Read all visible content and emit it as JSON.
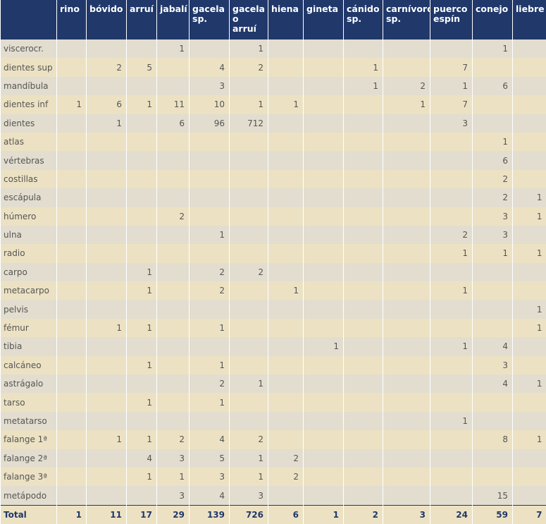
{
  "table": {
    "header": [
      "rino",
      "bóvido",
      "arruí",
      "jabalí",
      "gacela sp.",
      "gacela o arruí",
      "hiena",
      "gineta",
      "cánido sp.",
      "carnívoro sp.",
      "puerco espín",
      "conejo",
      "liebre"
    ],
    "rows": [
      {
        "label": "viscerocr.",
        "cells": [
          null,
          null,
          null,
          1,
          null,
          1,
          null,
          null,
          null,
          null,
          null,
          1,
          null
        ]
      },
      {
        "label": "dientes sup",
        "cells": [
          null,
          2,
          5,
          null,
          4,
          2,
          null,
          null,
          1,
          null,
          7,
          null,
          null
        ]
      },
      {
        "label": "mandíbula",
        "cells": [
          null,
          null,
          null,
          null,
          3,
          null,
          null,
          null,
          1,
          2,
          1,
          6,
          null
        ]
      },
      {
        "label": "dientes inf",
        "cells": [
          1,
          6,
          1,
          11,
          10,
          1,
          1,
          null,
          null,
          1,
          7,
          null,
          null
        ]
      },
      {
        "label": "dientes",
        "cells": [
          null,
          1,
          null,
          6,
          96,
          712,
          null,
          null,
          null,
          null,
          3,
          null,
          null
        ]
      },
      {
        "label": "atlas",
        "cells": [
          null,
          null,
          null,
          null,
          null,
          null,
          null,
          null,
          null,
          null,
          null,
          1,
          null
        ]
      },
      {
        "label": "vértebras",
        "cells": [
          null,
          null,
          null,
          null,
          null,
          null,
          null,
          null,
          null,
          null,
          null,
          6,
          null
        ]
      },
      {
        "label": "costillas",
        "cells": [
          null,
          null,
          null,
          null,
          null,
          null,
          null,
          null,
          null,
          null,
          null,
          2,
          null
        ]
      },
      {
        "label": "escápula",
        "cells": [
          null,
          null,
          null,
          null,
          null,
          null,
          null,
          null,
          null,
          null,
          null,
          2,
          1
        ]
      },
      {
        "label": "húmero",
        "cells": [
          null,
          null,
          null,
          2,
          null,
          null,
          null,
          null,
          null,
          null,
          null,
          3,
          1
        ]
      },
      {
        "label": "ulna",
        "cells": [
          null,
          null,
          null,
          null,
          1,
          null,
          null,
          null,
          null,
          null,
          2,
          3,
          null
        ]
      },
      {
        "label": "radio",
        "cells": [
          null,
          null,
          null,
          null,
          null,
          null,
          null,
          null,
          null,
          null,
          1,
          1,
          1
        ]
      },
      {
        "label": "carpo",
        "cells": [
          null,
          null,
          1,
          null,
          2,
          2,
          null,
          null,
          null,
          null,
          null,
          null,
          null
        ]
      },
      {
        "label": "metacarpo",
        "cells": [
          null,
          null,
          1,
          null,
          2,
          null,
          1,
          null,
          null,
          null,
          1,
          null,
          null
        ]
      },
      {
        "label": "pelvis",
        "cells": [
          null,
          null,
          null,
          null,
          null,
          null,
          null,
          null,
          null,
          null,
          null,
          null,
          1
        ]
      },
      {
        "label": "fémur",
        "cells": [
          null,
          1,
          1,
          null,
          1,
          null,
          null,
          null,
          null,
          null,
          null,
          null,
          1
        ]
      },
      {
        "label": "tibia",
        "cells": [
          null,
          null,
          null,
          null,
          null,
          null,
          null,
          1,
          null,
          null,
          1,
          4,
          null
        ]
      },
      {
        "label": "calcáneo",
        "cells": [
          null,
          null,
          1,
          null,
          1,
          null,
          null,
          null,
          null,
          null,
          null,
          3,
          null
        ]
      },
      {
        "label": "astrágalo",
        "cells": [
          null,
          null,
          null,
          null,
          2,
          1,
          null,
          null,
          null,
          null,
          null,
          4,
          1
        ]
      },
      {
        "label": "tarso",
        "cells": [
          null,
          null,
          1,
          null,
          1,
          null,
          null,
          null,
          null,
          null,
          null,
          null,
          null
        ]
      },
      {
        "label": "metatarso",
        "cells": [
          null,
          null,
          null,
          null,
          null,
          null,
          null,
          null,
          null,
          null,
          1,
          null,
          null
        ]
      },
      {
        "label": "falange 1ª",
        "cells": [
          null,
          1,
          1,
          2,
          4,
          2,
          null,
          null,
          null,
          null,
          null,
          8,
          1
        ]
      },
      {
        "label": "falange 2ª",
        "cells": [
          null,
          null,
          4,
          3,
          5,
          1,
          2,
          null,
          null,
          null,
          null,
          null,
          null
        ]
      },
      {
        "label": "falange 3ª",
        "cells": [
          null,
          null,
          1,
          1,
          3,
          1,
          2,
          null,
          null,
          null,
          null,
          null,
          null
        ]
      },
      {
        "label": "metápodo",
        "cells": [
          null,
          null,
          null,
          3,
          4,
          3,
          null,
          null,
          null,
          null,
          null,
          15,
          null
        ]
      }
    ],
    "total": {
      "label": "Total",
      "cells": [
        1,
        11,
        17,
        29,
        139,
        726,
        6,
        1,
        2,
        3,
        24,
        59,
        7
      ]
    }
  }
}
